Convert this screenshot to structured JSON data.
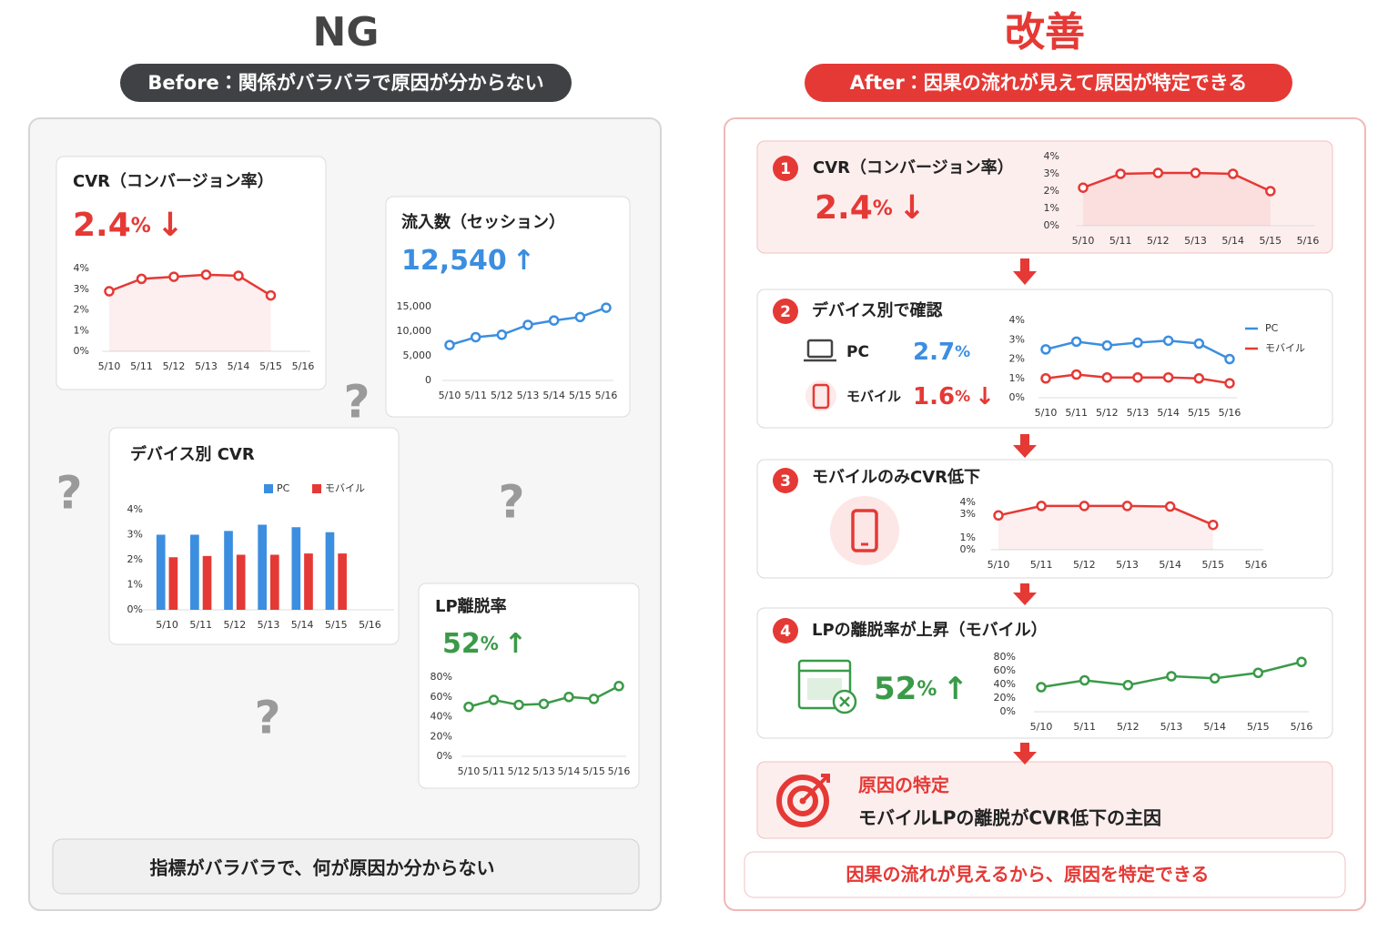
{
  "left": {
    "title": "NG",
    "subtitle": "Before：関係がバラバラで原因が分からない",
    "cards": [
      {
        "title": "CVR（コンバージョン率）",
        "kpi": {
          "value": "2.4",
          "unit": "%",
          "arrow": "↓"
        },
        "chart": {
          "type": "line",
          "area": true,
          "categories": [
            "5/10",
            "5/11",
            "5/12",
            "5/13",
            "5/14",
            "5/15",
            "5/16"
          ],
          "series": [
            {
              "name": "CVR",
              "color": "#e53935",
              "values": [
                2.9,
                3.5,
                3.6,
                3.7,
                3.65,
                2.7,
                null
              ]
            }
          ],
          "ylim": [
            0,
            4
          ],
          "yticks": [
            {
              "value": 0,
              "label": "0%"
            },
            {
              "value": 1,
              "label": "1%"
            },
            {
              "value": 2,
              "label": "2%"
            },
            {
              "value": 3,
              "label": "3%"
            },
            {
              "value": 4,
              "label": "4%"
            }
          ]
        }
      },
      {
        "title": "流入数（セッション）",
        "kpi": {
          "value": "12,540",
          "arrow": "↑"
        },
        "chart": {
          "type": "line",
          "area": false,
          "categories": [
            "5/10",
            "5/11",
            "5/12",
            "5/13",
            "5/14",
            "5/15",
            "5/16"
          ],
          "series": [
            {
              "name": "セッション",
              "color": "#3b8ee0",
              "values": [
                7200,
                8800,
                9300,
                11300,
                12200,
                12900,
                14800
              ]
            }
          ],
          "ylim": [
            0,
            15000
          ],
          "yticks": [
            0,
            {
              "value": 5000,
              "label": "5,000"
            },
            {
              "value": 10000,
              "label": "10,000"
            },
            {
              "value": 15000,
              "label": "15,000"
            }
          ]
        }
      },
      {
        "title": "デバイス別 CVR",
        "chart": {
          "type": "bar",
          "legend": "top-right",
          "categories": [
            "5/10",
            "5/11",
            "5/12",
            "5/13",
            "5/14",
            "5/15",
            "5/16"
          ],
          "series": [
            {
              "name": "PC",
              "color": "#3b8ee0",
              "values": [
                3.0,
                3.0,
                3.15,
                3.4,
                3.3,
                3.1,
                null
              ]
            },
            {
              "name": "モバイル",
              "color": "#e53935",
              "values": [
                2.1,
                2.15,
                2.2,
                2.2,
                2.25,
                2.25,
                null
              ]
            }
          ],
          "ylim": [
            0,
            4
          ],
          "yticks": [
            {
              "value": 0,
              "label": "0%"
            },
            {
              "value": 1,
              "label": "1%"
            },
            {
              "value": 2,
              "label": "2%"
            },
            {
              "value": 3,
              "label": "3%"
            },
            {
              "value": 4,
              "label": "4%"
            }
          ]
        }
      },
      {
        "title": "LP離脱率",
        "kpi": {
          "value": "52",
          "unit": "%",
          "arrow": "↑"
        },
        "chart": {
          "type": "line",
          "area": false,
          "categories": [
            "5/10",
            "5/11",
            "5/12",
            "5/13",
            "5/14",
            "5/15",
            "5/16"
          ],
          "series": [
            {
              "name": "LP離脱率",
              "color": "#3a9a48",
              "values": [
                50,
                57,
                52,
                53,
                60,
                58,
                71
              ]
            }
          ],
          "ylim": [
            0,
            80
          ],
          "yticks": [
            {
              "value": 0,
              "label": "0%"
            },
            {
              "value": 20,
              "label": "20%"
            },
            {
              "value": 40,
              "label": "40%"
            },
            {
              "value": 60,
              "label": "60%"
            },
            {
              "value": 80,
              "label": "80%"
            }
          ]
        }
      }
    ],
    "question_marks": [
      "?",
      "?",
      "?",
      "?"
    ],
    "footer": "指標がバラバラで、何が原因か分からない"
  },
  "right": {
    "title": "改善",
    "subtitle": "After：因果の流れが見えて原因が特定できる",
    "steps": [
      {
        "number": "1",
        "title": "CVR（コンバージョン率）",
        "kpi": {
          "value": "2.4",
          "unit": "%",
          "arrow": "↓"
        },
        "chart": {
          "type": "line",
          "area": true,
          "categories": [
            "5/10",
            "5/11",
            "5/12",
            "5/13",
            "5/14",
            "5/15",
            "5/16"
          ],
          "series": [
            {
              "name": "CVR",
              "color": "#e53935",
              "values": [
                2.2,
                3.0,
                3.05,
                3.05,
                3.0,
                2.0,
                null
              ]
            }
          ],
          "ylim": [
            0,
            4
          ],
          "yticks": [
            {
              "value": 0,
              "label": "0%"
            },
            {
              "value": 1,
              "label": "1%"
            },
            {
              "value": 2,
              "label": "2%"
            },
            {
              "value": 3,
              "label": "3%"
            },
            {
              "value": 4,
              "label": "4%"
            }
          ]
        }
      },
      {
        "number": "2",
        "title": "デバイス別で確認",
        "devices": [
          {
            "name": "PC",
            "value": "2.7",
            "unit": "%"
          },
          {
            "name": "モバイル",
            "value": "1.6",
            "unit": "%",
            "arrow": "↓"
          }
        ],
        "chart": {
          "type": "line",
          "area": false,
          "legend": "right",
          "categories": [
            "5/10",
            "5/11",
            "5/12",
            "5/13",
            "5/14",
            "5/15",
            "5/16"
          ],
          "series": [
            {
              "name": "PC",
              "color": "#3b8ee0",
              "values": [
                2.5,
                2.9,
                2.7,
                2.85,
                2.95,
                2.8,
                2.0
              ]
            },
            {
              "name": "モバイル",
              "color": "#e53935",
              "values": [
                1.0,
                1.2,
                1.05,
                1.05,
                1.05,
                1.0,
                0.75
              ]
            }
          ],
          "ylim": [
            0,
            4
          ],
          "yticks": [
            {
              "value": 0,
              "label": "0%"
            },
            {
              "value": 1,
              "label": "1%"
            },
            {
              "value": 2,
              "label": "2%"
            },
            {
              "value": 3,
              "label": "3%"
            },
            {
              "value": 4,
              "label": "4%"
            }
          ]
        }
      },
      {
        "number": "3",
        "title": "モバイルのみCVR低下",
        "chart": {
          "type": "line",
          "area": true,
          "categories": [
            "5/10",
            "5/11",
            "5/12",
            "5/13",
            "5/14",
            "5/15",
            "5/16"
          ],
          "series": [
            {
              "name": "モバイル",
              "color": "#e53935",
              "values": [
                2.9,
                3.7,
                3.7,
                3.7,
                3.65,
                2.1,
                null
              ]
            }
          ],
          "ylim": [
            0,
            4
          ],
          "yticks": [
            {
              "value": 0,
              "label": "0%"
            },
            {
              "value": 1,
              "label": "1%"
            },
            {
              "value": 3,
              "label": "3%"
            },
            {
              "value": 4,
              "label": "4%"
            }
          ]
        }
      },
      {
        "number": "4",
        "title": "LPの離脱率が上昇（モバイル）",
        "kpi": {
          "value": "52",
          "unit": "%",
          "arrow": "↑"
        },
        "chart": {
          "type": "line",
          "area": false,
          "categories": [
            "5/10",
            "5/11",
            "5/12",
            "5/13",
            "5/14",
            "5/15",
            "5/16"
          ],
          "series": [
            {
              "name": "LP離脱率",
              "color": "#3a9a48",
              "values": [
                36,
                46,
                39,
                52,
                49,
                57,
                73
              ]
            }
          ],
          "ylim": [
            0,
            80
          ],
          "yticks": [
            {
              "value": 0,
              "label": "0%"
            },
            {
              "value": 20,
              "label": "20%"
            },
            {
              "value": 40,
              "label": "40%"
            },
            {
              "value": 60,
              "label": "60%"
            },
            {
              "value": 80,
              "label": "80%"
            }
          ]
        }
      }
    ],
    "conclusion": {
      "title": "原因の特定",
      "text": "モバイルLPの離脱がCVR低下の主因"
    },
    "footer": "因果の流れが見えるから、原因を特定できる"
  }
}
